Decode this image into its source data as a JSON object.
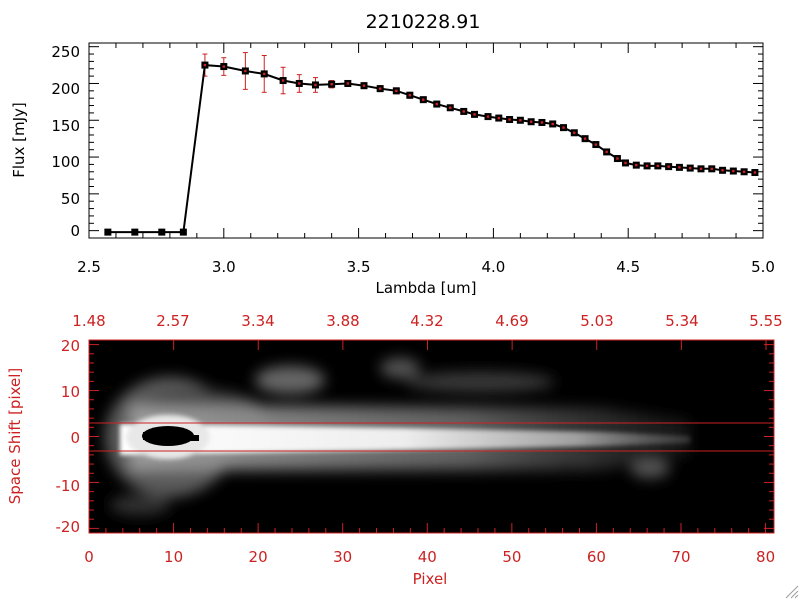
{
  "chart_data": [
    {
      "type": "line",
      "title": "2210228.91",
      "xlabel": "Lambda [um]",
      "ylabel": "Flux [mJy]",
      "xlim": [
        2.5,
        5.0
      ],
      "ylim": [
        -10,
        255
      ],
      "xticks": [
        "2.5",
        "3.0",
        "3.5",
        "4.0",
        "4.5",
        "5.0"
      ],
      "yticks": [
        "0",
        "50",
        "100",
        "150",
        "200",
        "250"
      ],
      "colors": {
        "line": "#000000",
        "marker": "#000000",
        "errorbar": "#cc2222"
      },
      "series": [
        {
          "x": [
            2.57,
            2.67,
            2.77,
            2.85,
            2.93,
            3.0,
            3.08,
            3.15,
            3.22,
            3.28,
            3.34,
            3.4,
            3.46,
            3.52,
            3.58,
            3.64,
            3.69,
            3.74,
            3.79,
            3.84,
            3.89,
            3.93,
            3.98,
            4.02,
            4.06,
            4.1,
            4.14,
            4.18,
            4.22,
            4.26,
            4.3,
            4.34,
            4.38,
            4.42,
            4.46,
            4.49,
            4.53,
            4.57,
            4.61,
            4.65,
            4.69,
            4.73,
            4.77,
            4.81,
            4.85,
            4.89,
            4.93,
            4.97
          ],
          "y": [
            -2,
            -2,
            -2,
            -2,
            225,
            223,
            217,
            213,
            204,
            200,
            198,
            199,
            200,
            197,
            193,
            190,
            184,
            178,
            172,
            167,
            162,
            158,
            155,
            153,
            151,
            150,
            148,
            147,
            145,
            140,
            133,
            125,
            117,
            107,
            98,
            92,
            89,
            88,
            88,
            87,
            86,
            85,
            84,
            84,
            82,
            81,
            80,
            79
          ],
          "err": [
            0,
            0,
            0,
            0,
            15,
            12,
            25,
            25,
            18,
            12,
            10,
            5,
            4,
            4,
            4,
            4,
            4,
            3,
            3,
            3,
            3,
            3,
            3,
            3,
            3,
            3,
            3,
            3,
            3,
            3,
            3,
            3,
            3,
            3,
            3,
            3,
            3,
            3,
            3,
            3,
            3,
            3,
            3,
            3,
            3,
            3,
            3,
            3
          ]
        }
      ],
      "grid": false
    },
    {
      "type": "heatmap",
      "xlabel": "Pixel",
      "ylabel": "Space Shift [pixel]",
      "xlim": [
        0,
        81
      ],
      "ylim": [
        -21,
        21
      ],
      "xticks": [
        "0",
        "10",
        "20",
        "30",
        "40",
        "50",
        "60",
        "70",
        "80"
      ],
      "yticks": [
        "-20",
        "-10",
        "0",
        "10",
        "20"
      ],
      "top_ticks": [
        "1.48",
        "2.57",
        "3.34",
        "3.88",
        "4.32",
        "4.69",
        "5.03",
        "5.34",
        "5.55"
      ],
      "extraction_aperture": [
        -3,
        3
      ],
      "colors": {
        "axes": "#cc2222",
        "background": "#000000",
        "colormap": "grayscale"
      },
      "grid": false
    }
  ]
}
